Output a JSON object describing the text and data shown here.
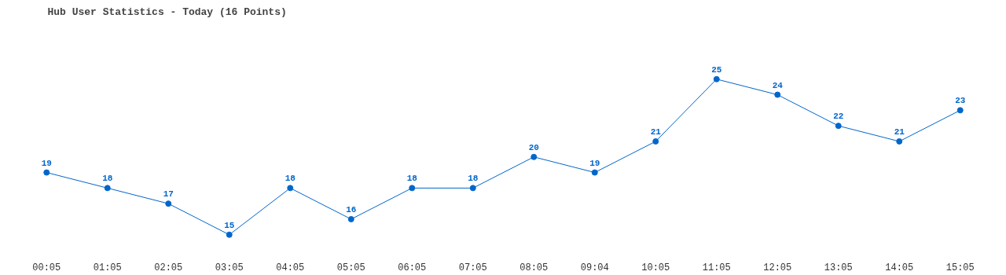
{
  "chart_data": {
    "type": "line",
    "title": "Hub User Statistics - Today (16 Points)",
    "categories": [
      "00:05",
      "01:05",
      "02:05",
      "03:05",
      "04:05",
      "05:05",
      "06:05",
      "07:05",
      "08:05",
      "09:04",
      "10:05",
      "11:05",
      "12:05",
      "13:05",
      "14:05",
      "15:05"
    ],
    "values": [
      19,
      18,
      17,
      15,
      18,
      16,
      18,
      18,
      20,
      19,
      21,
      25,
      24,
      22,
      21,
      23
    ],
    "color": "#0066cc",
    "marker": "circle",
    "data_labels": true
  }
}
